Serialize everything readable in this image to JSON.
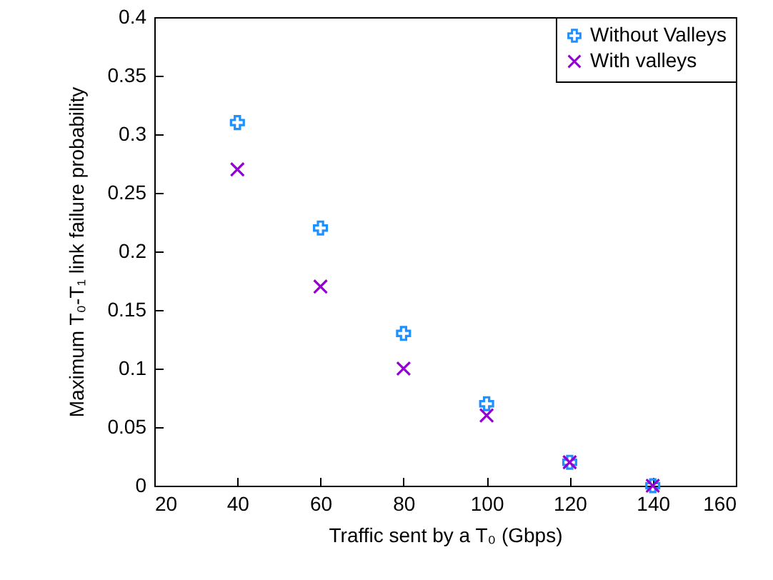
{
  "chart_data": {
    "type": "scatter",
    "xlabel": "Traffic sent by a T₀ (Gbps)",
    "ylabel": "Maximum T₀-T₁  link failure probability",
    "x": [
      40,
      60,
      80,
      100,
      120,
      140
    ],
    "series": [
      {
        "name": "Without Valleys",
        "color": "#1e90ff",
        "values": [
          0.31,
          0.22,
          0.13,
          0.07,
          0.02,
          0
        ]
      },
      {
        "name": "With valleys",
        "color": "#9400d3",
        "values": [
          0.27,
          0.17,
          0.1,
          0.06,
          0.02,
          0
        ]
      }
    ],
    "xlim": [
      20,
      160
    ],
    "xticks": [
      20,
      40,
      60,
      80,
      100,
      120,
      140,
      160
    ],
    "ylim": [
      0,
      0.4
    ],
    "yticks": [
      0,
      0.05,
      0.1,
      0.15,
      0.2,
      0.25,
      0.3,
      0.35,
      0.4
    ],
    "grid": false,
    "legend": "top right",
    "marker": "cross"
  }
}
